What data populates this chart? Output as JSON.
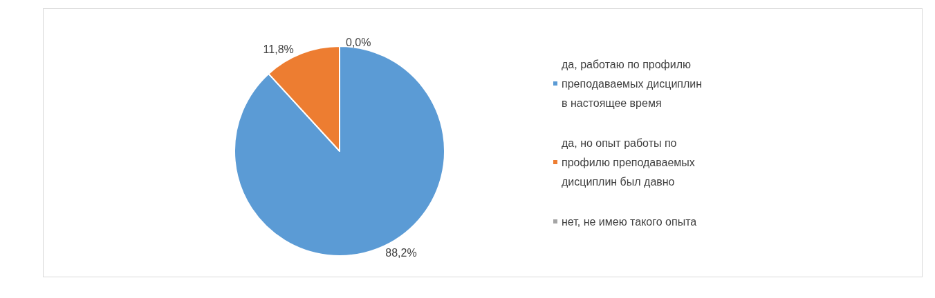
{
  "chart_data": {
    "type": "pie",
    "categories": [
      "да, работаю по профилю преподаваемых дисциплин в настоящее время",
      "да, но опыт работы по профилю преподаваемых дисциплин был давно",
      "нет, не имею такого опыта"
    ],
    "values": [
      88.2,
      11.8,
      0.0
    ],
    "colors": [
      "#5b9bd5",
      "#ed7d31",
      "#a5a5a5"
    ],
    "value_labels": [
      "88,2%",
      "11,8%",
      "0,0%"
    ],
    "legend": "right"
  }
}
